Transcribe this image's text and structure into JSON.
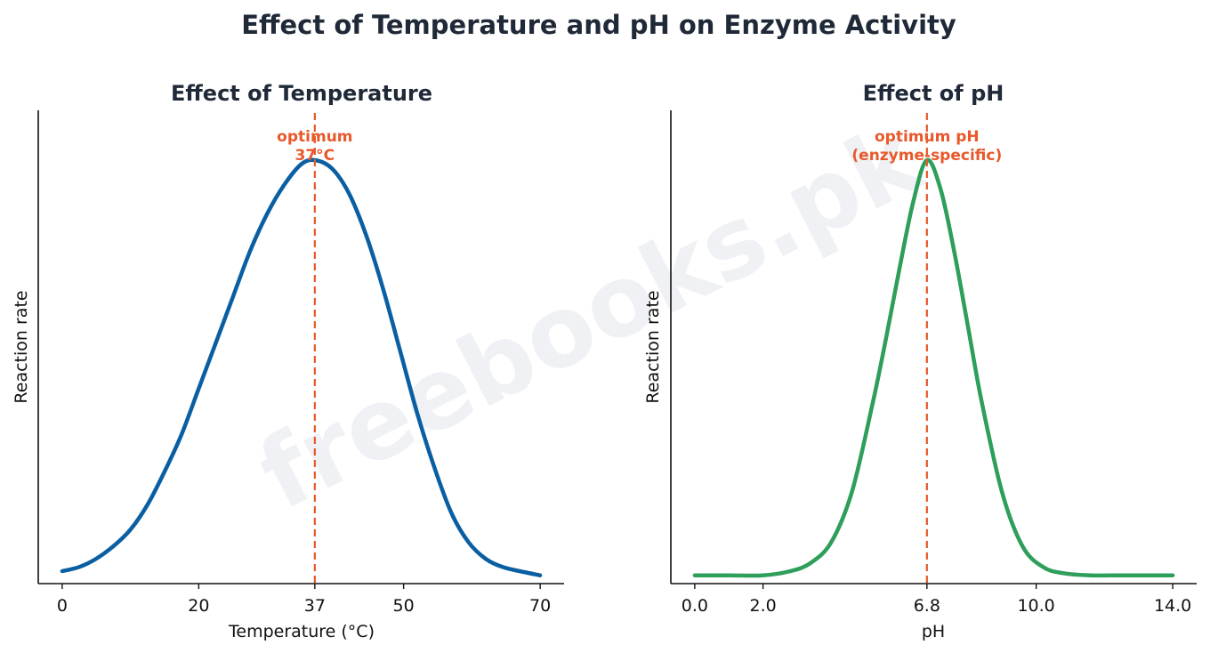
{
  "suptitle": "Effect of Temperature and pH on Enzyme Activity",
  "watermark": "freebooks.pk",
  "colors": {
    "temperature_curve": "#0a5fa3",
    "ph_curve": "#2e9e5b",
    "optimum_line": "#e8582a",
    "text": "#1f2937"
  },
  "chart_data": [
    {
      "type": "line",
      "title": "Effect of Temperature",
      "xlabel": "Temperature (°C)",
      "ylabel": "Reaction rate",
      "xlim": [
        -3.5,
        73.5
      ],
      "ylim": [
        -0.02,
        1.12
      ],
      "xticks": [
        0,
        20,
        37,
        50,
        70
      ],
      "xticklabels": [
        "0",
        "20",
        "37",
        "50",
        "70"
      ],
      "yticks": [],
      "series": [
        {
          "x": [
            0,
            2.5,
            5,
            7.5,
            10,
            12.5,
            15,
            17.5,
            20,
            22.5,
            25,
            27.5,
            30,
            32.5,
            35,
            37,
            39.5,
            42,
            44.5,
            47,
            49.5,
            52,
            54.5,
            57,
            59.5,
            62,
            64.5,
            67,
            70
          ],
          "y": [
            0.01,
            0.02,
            0.04,
            0.07,
            0.11,
            0.17,
            0.25,
            0.34,
            0.45,
            0.56,
            0.67,
            0.78,
            0.87,
            0.94,
            0.99,
            1.0,
            0.98,
            0.92,
            0.82,
            0.69,
            0.54,
            0.39,
            0.26,
            0.15,
            0.08,
            0.04,
            0.02,
            0.01,
            0.0
          ]
        }
      ],
      "optimum": {
        "x": 37,
        "label_lines": [
          "optimum",
          "37°C"
        ]
      },
      "grid": false
    },
    {
      "type": "line",
      "title": "Effect of pH",
      "xlabel": "pH",
      "ylabel": "Reaction rate",
      "xlim": [
        -0.7,
        14.7
      ],
      "ylim": [
        -0.02,
        1.12
      ],
      "xticks": [
        0.0,
        2.0,
        6.8,
        10.0,
        14.0
      ],
      "xticklabels": [
        "0.0",
        "2.0",
        "6.8",
        "10.0",
        "14.0"
      ],
      "yticks": [],
      "series": [
        {
          "x": [
            0.0,
            1.0,
            2.0,
            2.8,
            3.4,
            4.0,
            4.6,
            5.2,
            5.6,
            6.0,
            6.4,
            6.8,
            7.2,
            7.6,
            8.0,
            8.4,
            9.0,
            9.6,
            10.2,
            10.8,
            11.6,
            12.6,
            14.0
          ],
          "y": [
            0.0,
            0.0,
            0.0,
            0.01,
            0.03,
            0.08,
            0.2,
            0.41,
            0.57,
            0.74,
            0.9,
            1.0,
            0.93,
            0.78,
            0.6,
            0.42,
            0.2,
            0.07,
            0.02,
            0.005,
            0.0,
            0.0,
            0.0
          ]
        }
      ],
      "optimum": {
        "x": 6.8,
        "label_lines": [
          "optimum pH",
          "(enzyme-specific)"
        ]
      },
      "grid": false
    }
  ]
}
